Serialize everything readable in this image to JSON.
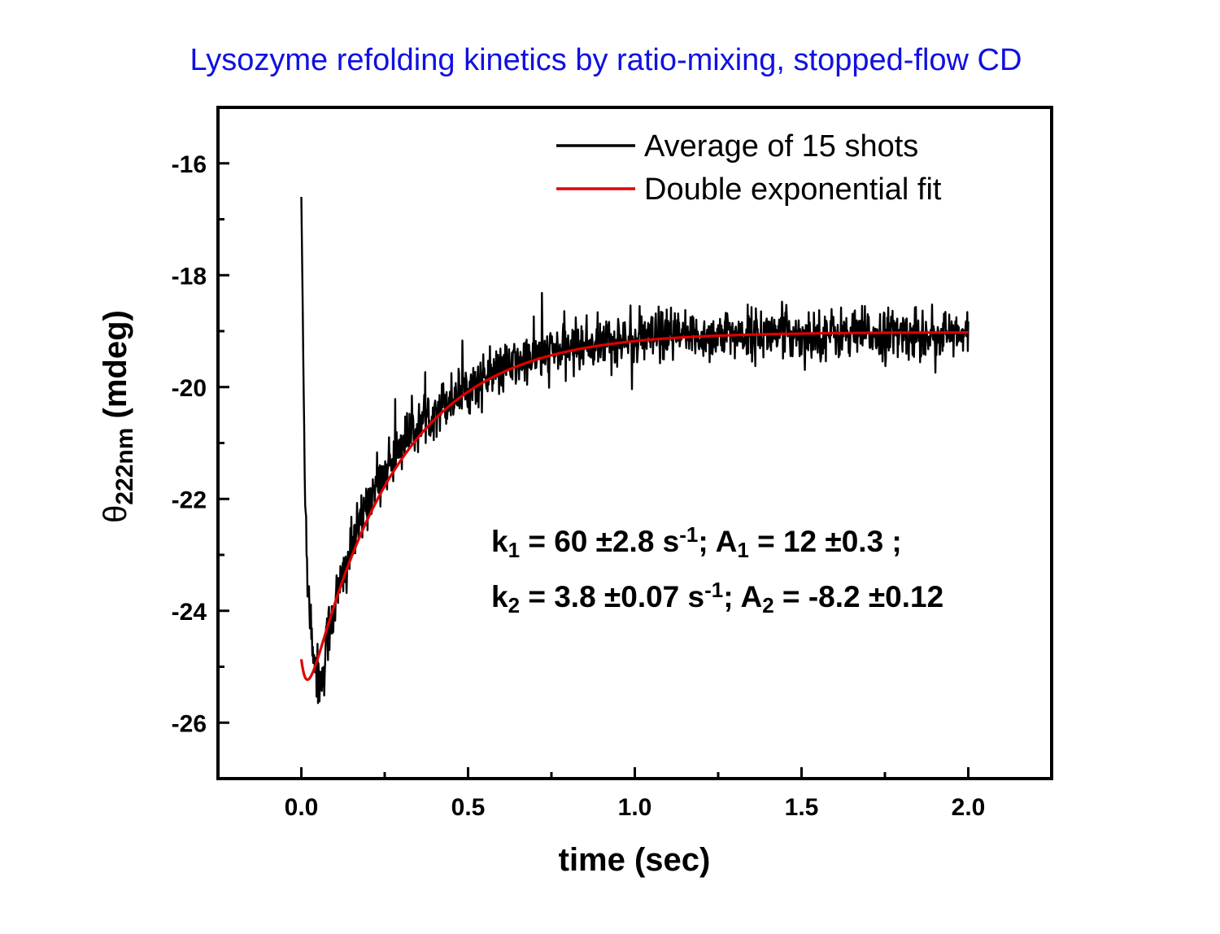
{
  "title": "Lysozyme refolding kinetics by ratio-mixing, stopped-flow CD",
  "colors": {
    "title": "#1010e0",
    "data": "#000000",
    "fit": "#e00000",
    "axes": "#000000"
  },
  "chart_data": {
    "type": "line",
    "title": "Lysozyme refolding kinetics by ratio-mixing, stopped-flow CD",
    "xlabel": "time (sec)",
    "ylabel": {
      "symbol": "θ",
      "subscript": "222nm",
      "unit": " (mdeg)"
    },
    "xlim": [
      -0.25,
      2.25
    ],
    "ylim": [
      -27,
      -15
    ],
    "xticks": [
      0.0,
      0.5,
      1.0,
      1.5,
      2.0
    ],
    "xtick_labels": [
      "0.0",
      "0.5",
      "1.0",
      "1.5",
      "2.0"
    ],
    "xminor": [
      0.25,
      0.75,
      1.25,
      1.75
    ],
    "yticks": [
      -16,
      -18,
      -20,
      -22,
      -24,
      -26
    ],
    "ytick_labels": [
      "-16",
      "-18",
      "-20",
      "-22",
      "-24",
      "-26"
    ],
    "yminor": [
      -17,
      -19,
      -21,
      -23,
      -25
    ],
    "legend_position": "top-right",
    "series": [
      {
        "name": "Average of 15 shots",
        "kind": "noisy-data",
        "x": [
          0.0,
          0.01,
          0.02,
          0.03,
          0.04,
          0.05,
          0.06,
          0.07,
          0.08,
          0.1,
          0.15,
          0.2,
          0.3,
          0.4,
          0.5,
          0.6,
          0.7,
          0.8,
          0.9,
          1.0,
          1.1,
          1.2,
          1.3,
          1.4,
          1.5,
          1.6,
          1.7,
          1.8,
          1.9,
          2.0
        ],
        "values": [
          -16.6,
          -21.5,
          -23.6,
          -24.3,
          -24.9,
          -25.2,
          -25.3,
          -24.9,
          -24.4,
          -23.9,
          -22.9,
          -22.0,
          -21.0,
          -20.4,
          -20.0,
          -19.7,
          -19.45,
          -19.3,
          -19.2,
          -19.15,
          -19.1,
          -19.1,
          -19.05,
          -19.05,
          -19.05,
          -19.05,
          -19.05,
          -19.05,
          -19.05,
          -19.1
        ]
      },
      {
        "name": "Double exponential fit",
        "kind": "fit",
        "model": "y = y0 + A1*exp(-k1*t) + A2*exp(-k2*t)",
        "params": {
          "y0": -19.02,
          "A1": 12,
          "k1": 60,
          "A2": -8.2,
          "k2": 3.8,
          "t0_offset": 0.0375
        },
        "x_range": [
          0.0,
          2.0
        ],
        "min_point": {
          "x": 0.06,
          "y": -24.75
        }
      }
    ],
    "annotations": [
      {
        "parts": [
          {
            "t": "k",
            "s": "normal"
          },
          {
            "t": "1",
            "s": "sub"
          },
          {
            "t": " = 60 ±2.8 s",
            "s": "normal"
          },
          {
            "t": "-1",
            "s": "sup"
          },
          {
            "t": "; A",
            "s": "normal"
          },
          {
            "t": "1",
            "s": "sub"
          },
          {
            "t": " = 12 ±0.3 ;",
            "s": "normal"
          }
        ]
      },
      {
        "parts": [
          {
            "t": "k",
            "s": "normal"
          },
          {
            "t": "2",
            "s": "sub"
          },
          {
            "t": " = 3.8 ±0.07 s",
            "s": "normal"
          },
          {
            "t": "-1",
            "s": "sup"
          },
          {
            "t": "; A",
            "s": "normal"
          },
          {
            "t": "2",
            "s": "sub"
          },
          {
            "t": " = -8.2 ±0.12",
            "s": "normal"
          }
        ]
      }
    ]
  }
}
